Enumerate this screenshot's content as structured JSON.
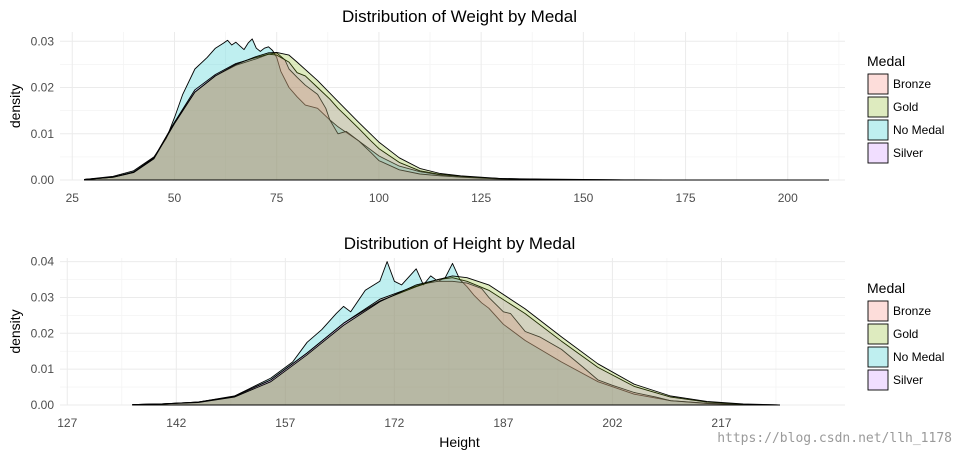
{
  "watermark": "https://blog.csdn.net/llh_1178",
  "chart_data": [
    {
      "type": "area",
      "id": "weight",
      "title": "Distribution of Weight by Medal",
      "xlabel": "",
      "ylabel": "density",
      "xlim": [
        22,
        214
      ],
      "ylim": [
        0,
        0.032
      ],
      "xticks": [
        25,
        50,
        75,
        100,
        125,
        150,
        175,
        200
      ],
      "xtick_labels": [
        "25",
        "50",
        "75",
        "100",
        "125",
        "150",
        "175",
        "200"
      ],
      "yticks": [
        0,
        0.01,
        0.02,
        0.03
      ],
      "ytick_labels": [
        "0.00",
        "0.01",
        "0.02",
        "0.03"
      ],
      "legend": {
        "title": "Medal",
        "position": "right",
        "entries": [
          "Bronze",
          "Gold",
          "No Medal",
          "Silver"
        ]
      },
      "series": [
        {
          "name": "No Medal",
          "color": "#00BFC4",
          "x": [
            28,
            35,
            40,
            45,
            48,
            50,
            52,
            55,
            58,
            60,
            62,
            63,
            64,
            65,
            66,
            67,
            68,
            69,
            70,
            71,
            72,
            73,
            74,
            75,
            76,
            78,
            80,
            82,
            85,
            88,
            90,
            95,
            100,
            105,
            110,
            115,
            120,
            125,
            130,
            140,
            150,
            160,
            170,
            190,
            210
          ],
          "y": [
            0.0001,
            0.0008,
            0.002,
            0.005,
            0.009,
            0.0135,
            0.0185,
            0.024,
            0.0265,
            0.0285,
            0.0296,
            0.0302,
            0.0292,
            0.0298,
            0.029,
            0.0282,
            0.0296,
            0.0305,
            0.0285,
            0.0278,
            0.0285,
            0.0288,
            0.028,
            0.0265,
            0.0235,
            0.02,
            0.018,
            0.0162,
            0.0155,
            0.013,
            0.0115,
            0.0085,
            0.0052,
            0.003,
            0.0018,
            0.0011,
            0.0008,
            0.0005,
            0.0003,
            0.0002,
            0.0001,
            5e-05,
            0,
            0,
            0
          ]
        },
        {
          "name": "Bronze",
          "color": "#F8766D",
          "x": [
            28,
            35,
            40,
            45,
            50,
            55,
            60,
            65,
            70,
            73,
            75,
            77,
            78,
            80,
            82,
            85,
            87,
            88,
            90,
            92,
            95,
            98,
            100,
            105,
            110,
            115,
            120,
            125,
            130,
            140,
            150,
            160,
            170,
            190,
            210
          ],
          "y": [
            0.0001,
            0.0006,
            0.0017,
            0.0048,
            0.0125,
            0.019,
            0.0225,
            0.0248,
            0.0262,
            0.0272,
            0.0275,
            0.026,
            0.024,
            0.0222,
            0.0205,
            0.0185,
            0.0155,
            0.013,
            0.01,
            0.0105,
            0.0085,
            0.006,
            0.0042,
            0.0022,
            0.0013,
            0.0009,
            0.0006,
            0.0004,
            0.0002,
            0.0001,
            5e-05,
            0,
            0,
            0,
            0
          ]
        },
        {
          "name": "Silver",
          "color": "#C77CFF",
          "x": [
            28,
            35,
            40,
            45,
            50,
            55,
            60,
            65,
            70,
            73,
            75,
            78,
            80,
            82,
            85,
            88,
            90,
            92,
            95,
            98,
            100,
            105,
            110,
            115,
            120,
            125,
            130,
            140,
            150,
            160,
            170,
            190,
            210
          ],
          "y": [
            0.0001,
            0.0006,
            0.0017,
            0.0048,
            0.0125,
            0.0195,
            0.0228,
            0.0252,
            0.0265,
            0.0272,
            0.027,
            0.0255,
            0.0232,
            0.0225,
            0.02,
            0.0175,
            0.0155,
            0.0138,
            0.0112,
            0.0085,
            0.0068,
            0.0038,
            0.002,
            0.0012,
            0.0008,
            0.0005,
            0.0003,
            0.0001,
            5e-05,
            0,
            0,
            0,
            0
          ]
        },
        {
          "name": "Gold",
          "color": "#7CAE00",
          "x": [
            28,
            35,
            40,
            45,
            50,
            55,
            60,
            65,
            70,
            73,
            75,
            78,
            80,
            85,
            90,
            95,
            100,
            105,
            110,
            115,
            120,
            125,
            130,
            140,
            150,
            160,
            170,
            190,
            210
          ],
          "y": [
            0.0001,
            0.0006,
            0.0016,
            0.0046,
            0.0122,
            0.019,
            0.0225,
            0.025,
            0.0267,
            0.0275,
            0.0276,
            0.027,
            0.0255,
            0.0215,
            0.017,
            0.0125,
            0.0082,
            0.0048,
            0.0025,
            0.0014,
            0.0009,
            0.0006,
            0.0003,
            0.0001,
            5e-05,
            0,
            0,
            0,
            0
          ]
        }
      ]
    },
    {
      "type": "area",
      "id": "height",
      "title": "Distribution of Height by Medal",
      "xlabel": "Height",
      "ylabel": "density",
      "xlim": [
        126,
        234
      ],
      "ylim": [
        0,
        0.041
      ],
      "xticks": [
        127,
        142,
        157,
        172,
        187,
        202,
        217
      ],
      "xtick_labels": [
        "127",
        "142",
        "157",
        "172",
        "187",
        "202",
        "217"
      ],
      "yticks": [
        0,
        0.01,
        0.02,
        0.03,
        0.04
      ],
      "ytick_labels": [
        "0.00",
        "0.01",
        "0.02",
        "0.03",
        "0.04"
      ],
      "legend": {
        "title": "Medal",
        "position": "right",
        "entries": [
          "Bronze",
          "Gold",
          "No Medal",
          "Silver"
        ]
      },
      "series": [
        {
          "name": "No Medal",
          "color": "#00BFC4",
          "x": [
            136,
            140,
            145,
            150,
            152,
            155,
            158,
            160,
            162,
            164,
            165,
            166,
            168,
            170,
            171,
            172,
            173,
            175,
            176,
            177,
            178,
            179,
            180,
            181,
            182,
            183,
            184,
            185,
            187,
            190,
            195,
            200,
            205,
            210,
            215,
            220,
            225
          ],
          "y": [
            0.0001,
            0.0003,
            0.0008,
            0.0025,
            0.0045,
            0.0075,
            0.012,
            0.0175,
            0.021,
            0.0255,
            0.0275,
            0.026,
            0.032,
            0.0345,
            0.04,
            0.0345,
            0.0335,
            0.038,
            0.0335,
            0.036,
            0.0345,
            0.0355,
            0.0395,
            0.035,
            0.033,
            0.0305,
            0.0285,
            0.027,
            0.0225,
            0.018,
            0.012,
            0.0065,
            0.003,
            0.0012,
            0.0004,
            0.0001,
            0
          ]
        },
        {
          "name": "Bronze",
          "color": "#F8766D",
          "x": [
            136,
            140,
            145,
            150,
            155,
            160,
            165,
            170,
            174,
            176,
            178,
            180,
            182,
            184,
            185,
            187,
            188,
            190,
            192,
            195,
            198,
            200,
            202,
            205,
            208,
            210,
            215,
            220,
            225
          ],
          "y": [
            0.0001,
            0.0003,
            0.0008,
            0.0024,
            0.007,
            0.0145,
            0.0228,
            0.0295,
            0.0325,
            0.0338,
            0.0345,
            0.0345,
            0.034,
            0.0325,
            0.03,
            0.026,
            0.0255,
            0.0205,
            0.019,
            0.0155,
            0.0105,
            0.007,
            0.0055,
            0.0035,
            0.0022,
            0.0012,
            0.0005,
            0.0001,
            0
          ]
        },
        {
          "name": "Silver",
          "color": "#C77CFF",
          "x": [
            136,
            140,
            145,
            150,
            155,
            160,
            165,
            170,
            175,
            178,
            180,
            182,
            185,
            190,
            195,
            200,
            205,
            210,
            215,
            220,
            225
          ],
          "y": [
            0.0001,
            0.0003,
            0.0008,
            0.0024,
            0.007,
            0.0145,
            0.0228,
            0.029,
            0.033,
            0.035,
            0.0355,
            0.0345,
            0.032,
            0.0255,
            0.0178,
            0.0105,
            0.0052,
            0.0022,
            0.0008,
            0.0002,
            0
          ]
        },
        {
          "name": "Gold",
          "color": "#7CAE00",
          "x": [
            136,
            140,
            145,
            150,
            155,
            160,
            165,
            170,
            175,
            178,
            180,
            182,
            185,
            190,
            195,
            200,
            205,
            210,
            215,
            220,
            225
          ],
          "y": [
            0.0001,
            0.0003,
            0.0007,
            0.0022,
            0.0065,
            0.014,
            0.0222,
            0.0288,
            0.0335,
            0.035,
            0.036,
            0.0355,
            0.0335,
            0.0268,
            0.019,
            0.0115,
            0.0058,
            0.0025,
            0.001,
            0.0003,
            0
          ]
        }
      ]
    }
  ]
}
